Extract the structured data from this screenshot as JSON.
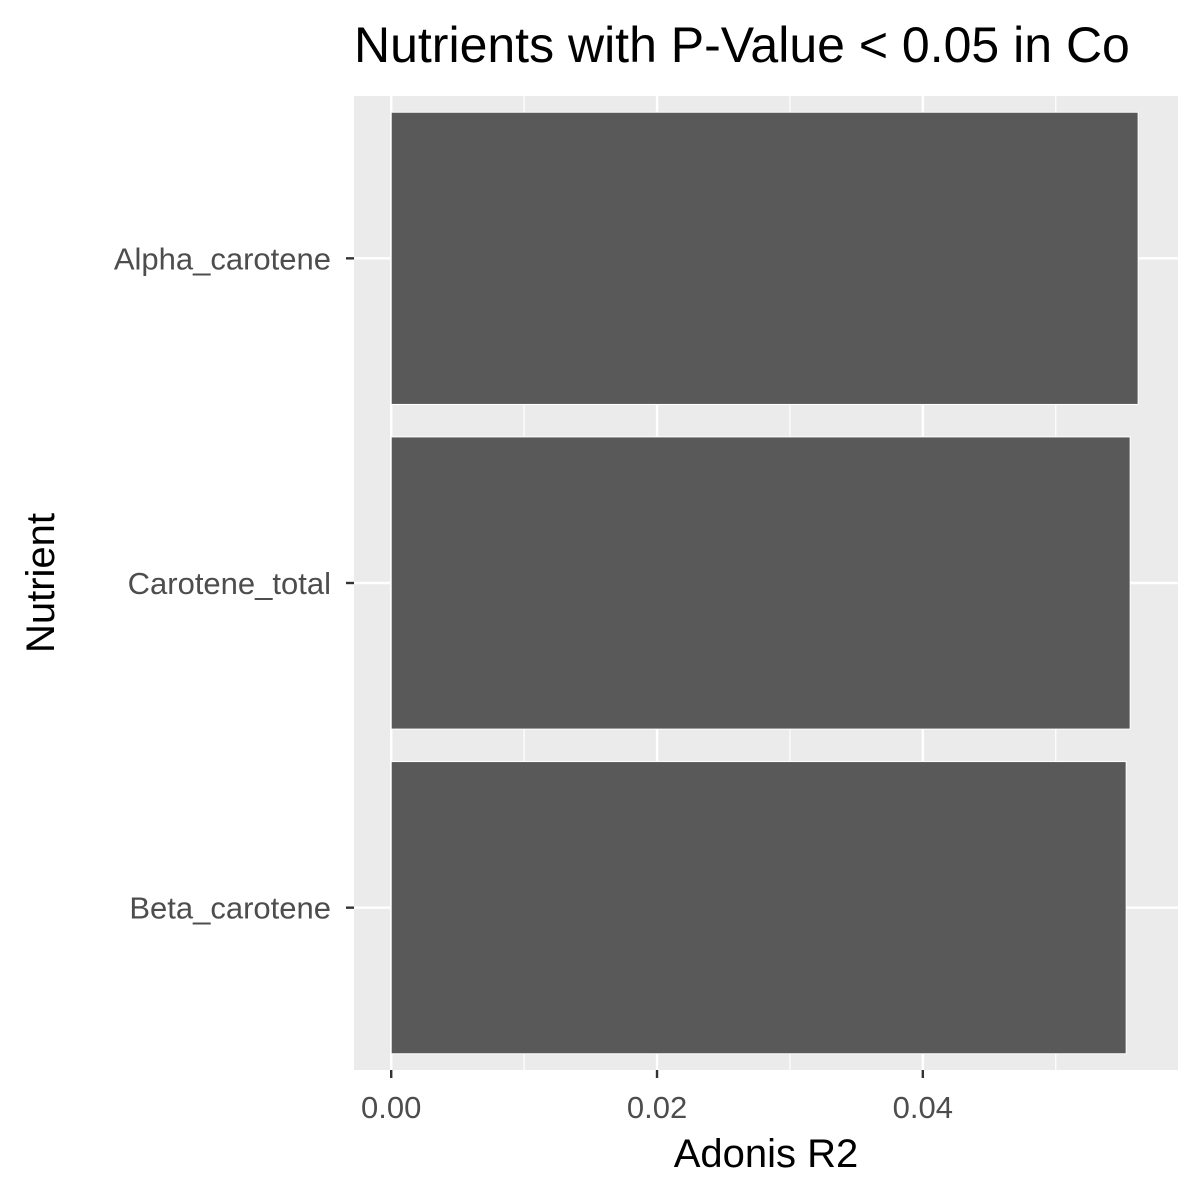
{
  "chart_data": {
    "type": "bar",
    "orientation": "horizontal",
    "title": "Nutrients with P-Value < 0.05 in Co",
    "xlabel": "Adonis R2",
    "ylabel": "Nutrient",
    "categories": [
      "Alpha_carotene",
      "Carotene_total",
      "Beta_carotene"
    ],
    "values": [
      0.0562,
      0.0556,
      0.0553
    ],
    "xlim": [
      -0.0028,
      0.0592
    ],
    "x_ticks": [
      0.0,
      0.02,
      0.04
    ],
    "x_tick_labels": [
      "0.00",
      "0.02",
      "0.04"
    ],
    "grid": true,
    "legend": "none",
    "colors": {
      "bar": "#595959",
      "panel": "#ebebeb",
      "grid_major": "#ffffff",
      "tick": "#333333"
    }
  }
}
